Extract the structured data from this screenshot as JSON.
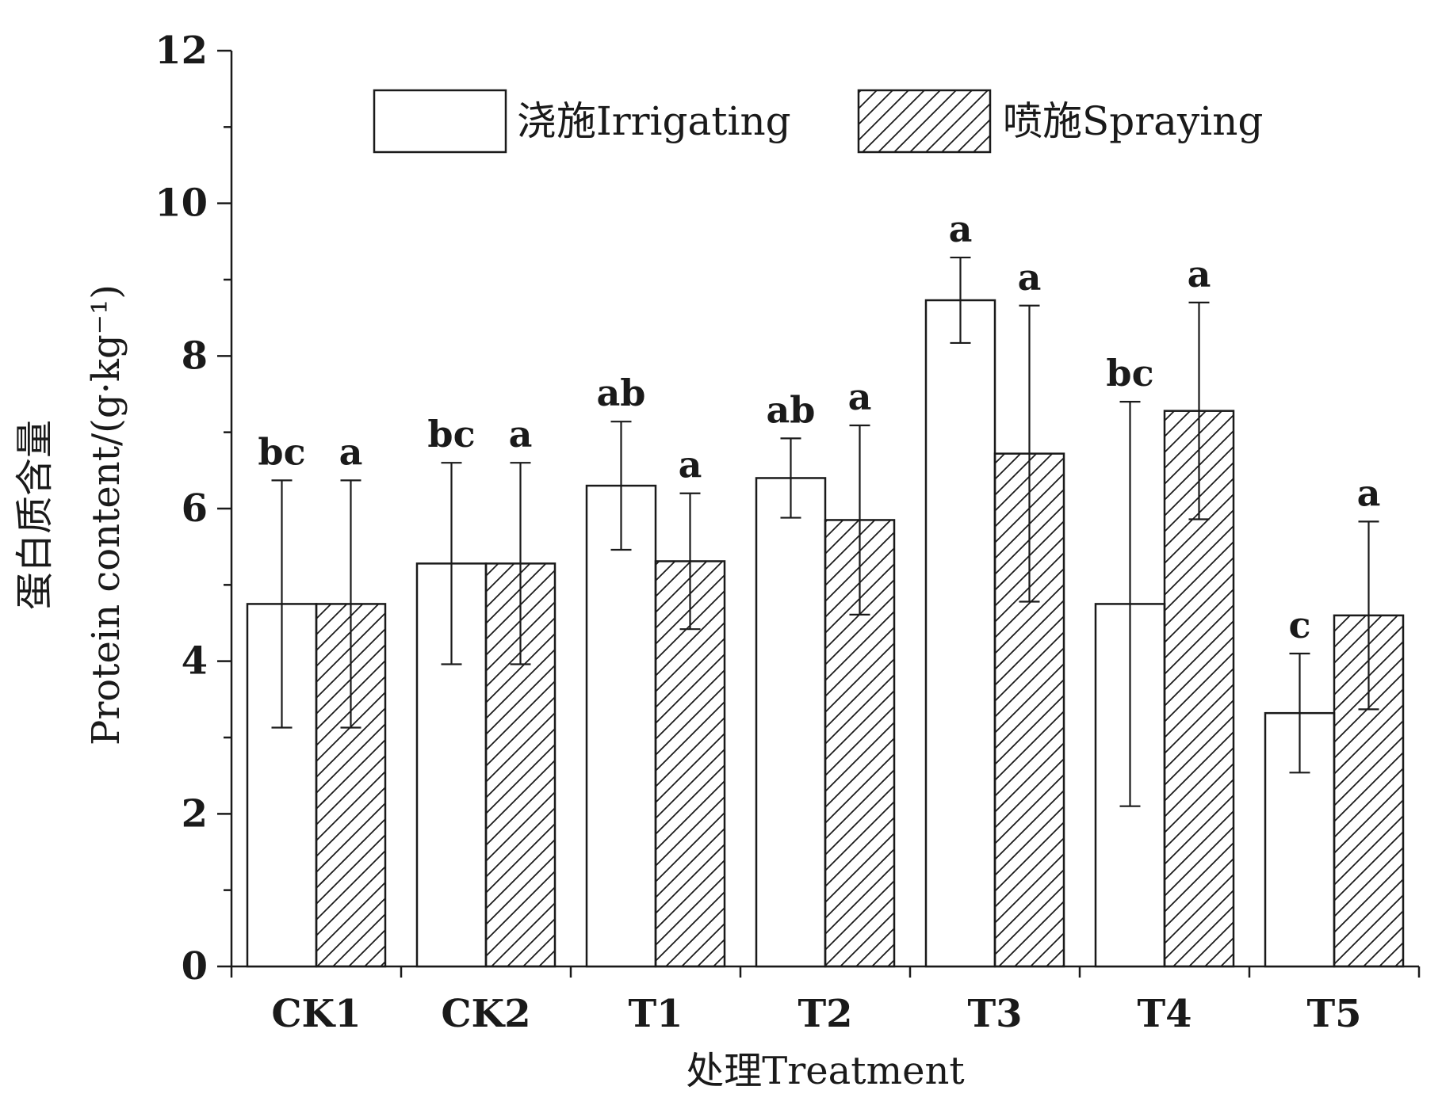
{
  "chart_data": {
    "type": "bar",
    "categories": [
      "CK1",
      "CK2",
      "T1",
      "T2",
      "T3",
      "T4",
      "T5"
    ],
    "series": [
      {
        "name": "浇施Irrigating",
        "values": [
          4.75,
          5.28,
          6.3,
          6.4,
          8.73,
          4.75,
          3.32
        ],
        "errors": [
          1.62,
          1.32,
          0.84,
          0.52,
          0.56,
          2.65,
          0.78
        ],
        "labels": [
          "bc",
          "bc",
          "ab",
          "ab",
          "a",
          "bc",
          "c"
        ],
        "fill": "#ffffff",
        "pattern": "none"
      },
      {
        "name": "喷施Spraying",
        "values": [
          4.75,
          5.28,
          5.31,
          5.85,
          6.72,
          7.28,
          4.6
        ],
        "errors": [
          1.62,
          1.32,
          0.89,
          1.24,
          1.94,
          1.42,
          1.23
        ],
        "labels": [
          "a",
          "a",
          "a",
          "a",
          "a",
          "a",
          "a"
        ],
        "fill": "#ffffff",
        "pattern": "diagonal-hatch"
      }
    ],
    "xlabel": "处理Treatment",
    "ylabel_cn": "蛋白质含量",
    "ylabel": "Protein content/(g·kg⁻¹)",
    "ylim": [
      0,
      12
    ],
    "yticks": [
      0,
      2,
      4,
      6,
      8,
      10,
      12
    ],
    "legend": "top",
    "grid": false,
    "stroke_color": "#1a1a1a"
  }
}
